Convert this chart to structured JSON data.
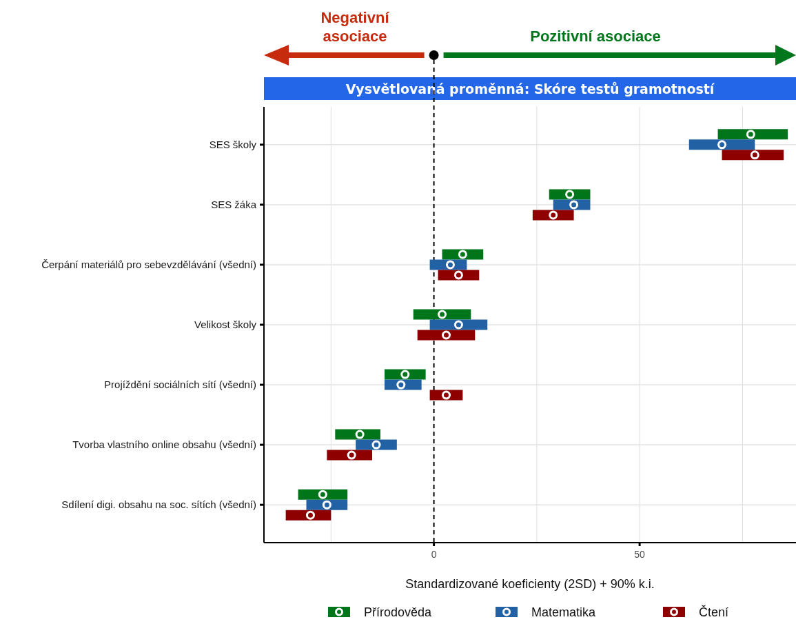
{
  "chart_data": {
    "type": "scatter",
    "orientation": "horizontal",
    "title": "Vysvětlovaná proměnná: Skóre testů gramotností",
    "xlabel": "Standardizované koeficienty (2SD) + 90% k.i.",
    "annotations": [
      "Negativní asociace",
      "Pozitivní asociace"
    ],
    "categories": [
      "SES školy",
      "SES žáka",
      "Čerpání materiálů pro sebevzdělávání (všední)",
      "Velikost školy",
      "Projíždění sociálních sítí (všední)",
      "Tvorba vlastního online obsahu (všední)",
      "Sdílení digi. obsahu na soc. sítích (všední)"
    ],
    "series": [
      {
        "name": "Přírodověda",
        "color": "#00751a",
        "values": [
          77,
          33,
          7,
          2,
          -7,
          -18,
          -27
        ],
        "errors": [
          [
            69,
            86
          ],
          [
            28,
            38
          ],
          [
            2,
            12
          ],
          [
            -5,
            9
          ],
          [
            -12,
            -2
          ],
          [
            -24,
            -13
          ],
          [
            -33,
            -21
          ]
        ]
      },
      {
        "name": "Matematika",
        "color": "#2361a5",
        "values": [
          70,
          34,
          4,
          6,
          -8,
          -14,
          -26
        ],
        "errors": [
          [
            62,
            78
          ],
          [
            29,
            38
          ],
          [
            -1,
            8
          ],
          [
            -1,
            13
          ],
          [
            -12,
            -3
          ],
          [
            -19,
            -9
          ],
          [
            -31,
            -21
          ]
        ]
      },
      {
        "name": "Čtení",
        "color": "#8e0000",
        "values": [
          78,
          29,
          6,
          3,
          3,
          -20,
          -30
        ],
        "errors": [
          [
            70,
            85
          ],
          [
            24,
            34
          ],
          [
            1,
            11
          ],
          [
            -4,
            10
          ],
          [
            -1,
            7
          ],
          [
            -26,
            -15
          ],
          [
            -36,
            -25
          ]
        ]
      }
    ],
    "xlim": [
      -41.3,
      88
    ],
    "xticks": [
      {
        "value": -25,
        "label": null
      },
      0,
      {
        "value": 25,
        "label": null
      },
      50,
      {
        "value": 75,
        "label": null
      }
    ],
    "ref_lines": [
      {
        "axis": "x",
        "value": 0,
        "label": null,
        "color": "#000000",
        "line_style": "dashed"
      }
    ],
    "grid": true,
    "legend": "bottom",
    "marker": "circle"
  }
}
